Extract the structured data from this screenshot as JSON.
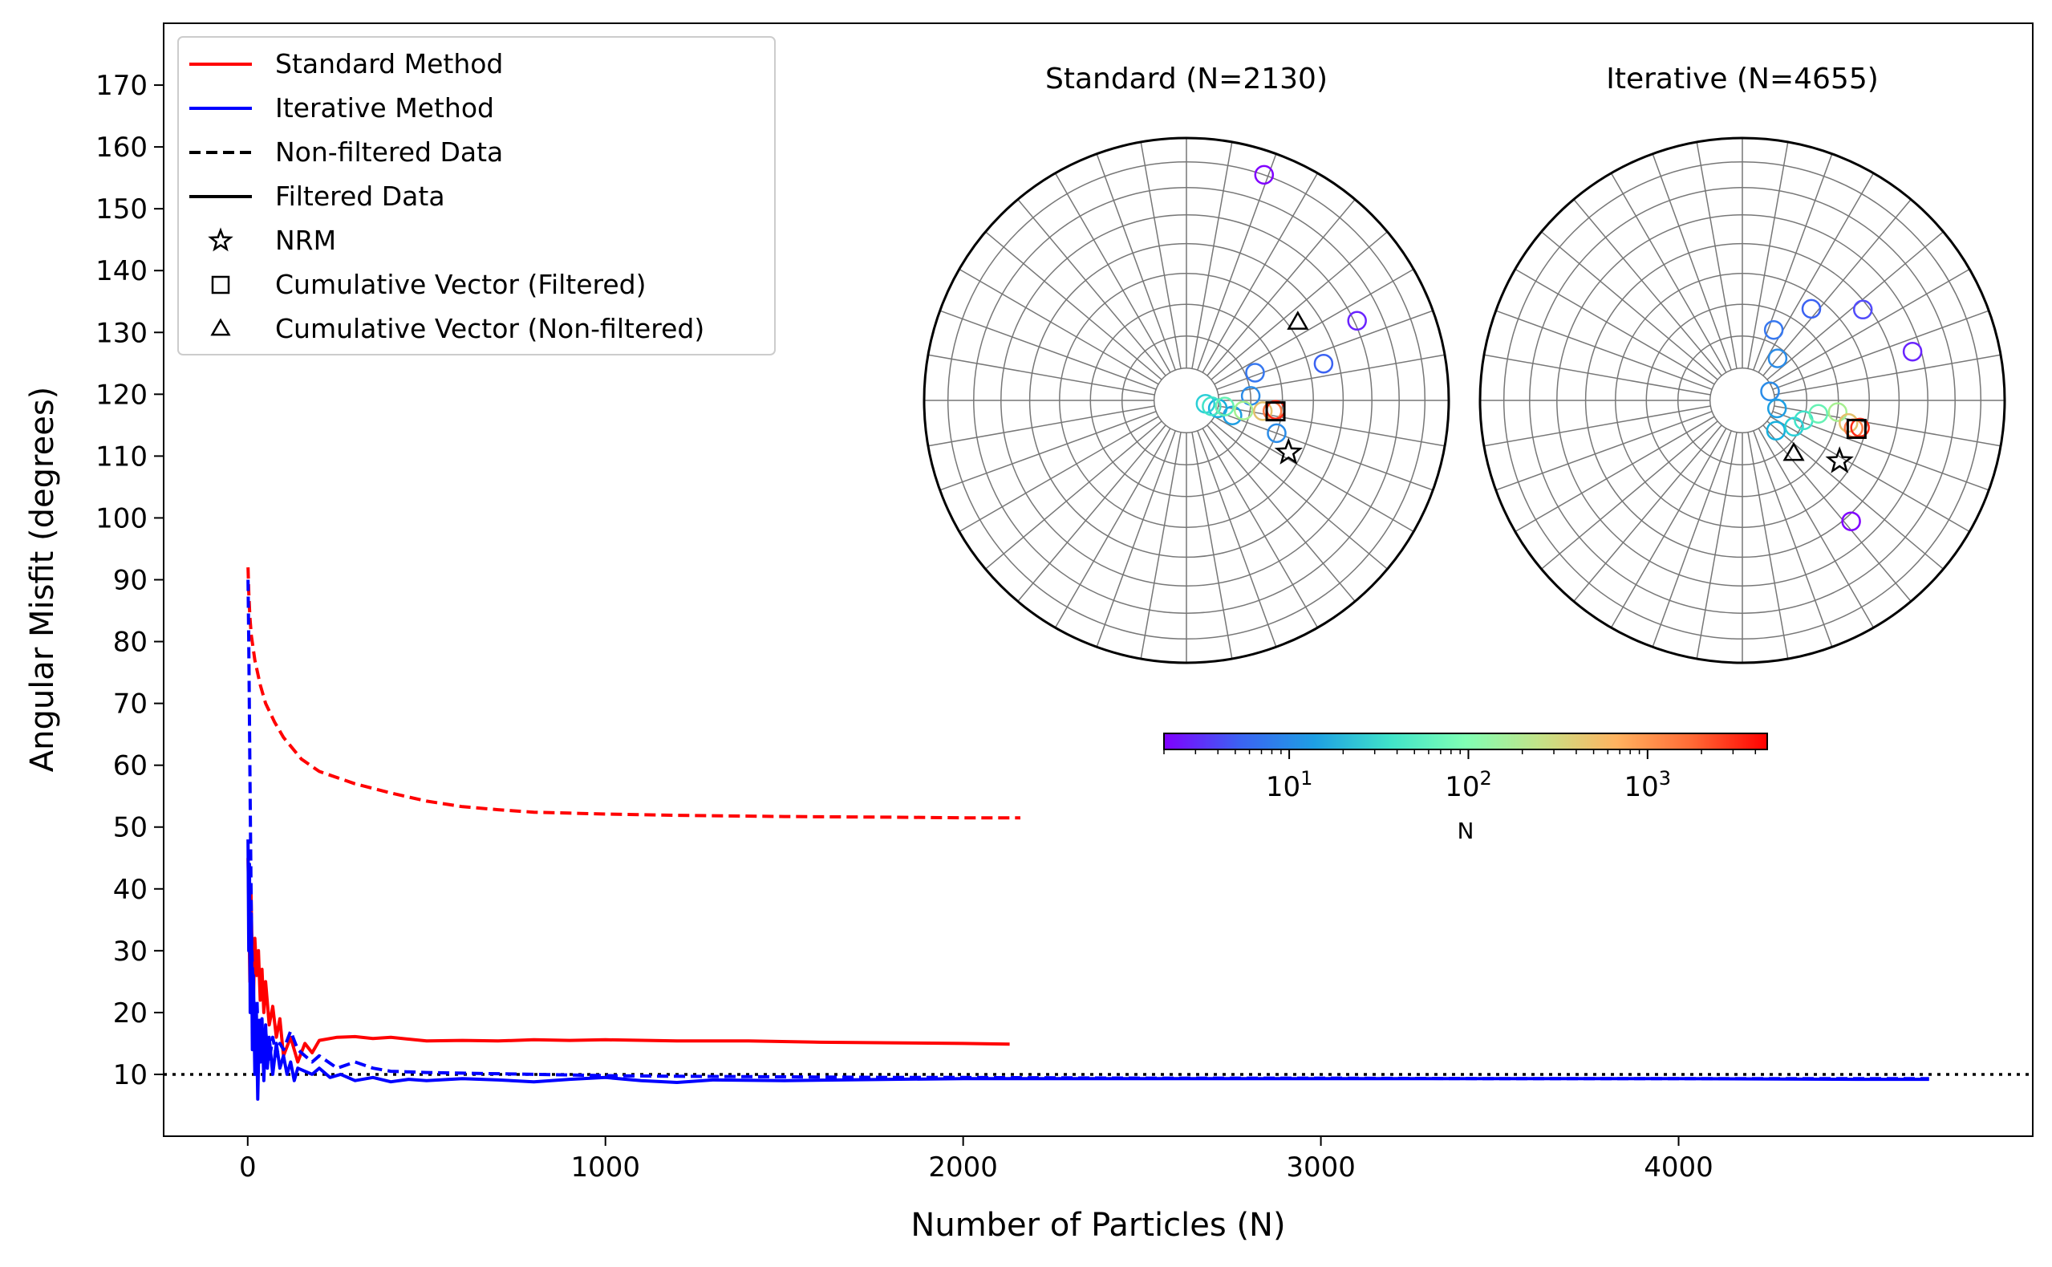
{
  "chart_data": [
    {
      "type": "line",
      "title": "",
      "xlabel": "Number of Particles (N)",
      "ylabel": "Angular Misfit (degrees)",
      "xlim": [
        -235,
        4990
      ],
      "ylim": [
        0,
        180
      ],
      "xticks": [
        0,
        1000,
        2000,
        3000,
        4000
      ],
      "xtick_labels": [
        "0",
        "1000",
        "2000",
        "3000",
        "4000"
      ],
      "yticks": [
        10,
        20,
        30,
        40,
        50,
        60,
        70,
        80,
        90,
        100,
        110,
        120,
        130,
        140,
        150,
        160,
        170
      ],
      "ytick_labels": [
        "10",
        "20",
        "30",
        "40",
        "50",
        "60",
        "70",
        "80",
        "90",
        "100",
        "110",
        "120",
        "130",
        "140",
        "150",
        "160",
        "170"
      ],
      "grid": false,
      "legend_position": "upper-left",
      "legend": [
        {
          "label": "Standard Method",
          "kind": "line",
          "color": "#ff0000",
          "dash": "solid"
        },
        {
          "label": "Iterative Method",
          "kind": "line",
          "color": "#0000ff",
          "dash": "solid"
        },
        {
          "label": "Non-filtered Data",
          "kind": "line",
          "color": "#000000",
          "dash": "dashed"
        },
        {
          "label": "Filtered Data",
          "kind": "line",
          "color": "#000000",
          "dash": "solid"
        },
        {
          "label": "NRM",
          "kind": "star",
          "color": "#000000"
        },
        {
          "label": "Cumulative Vector (Filtered)",
          "kind": "square",
          "color": "#000000"
        },
        {
          "label": "Cumulative Vector (Non-filtered)",
          "kind": "triangle",
          "color": "#000000"
        }
      ],
      "reference_line": {
        "y": 10,
        "style": "dotted",
        "color": "#000000"
      },
      "series": [
        {
          "name": "Standard Method",
          "line": "Non-filtered Data",
          "color": "#ff0000",
          "dash": "dashed",
          "x": [
            1,
            3,
            6,
            10,
            20,
            35,
            50,
            75,
            100,
            150,
            200,
            300,
            400,
            500,
            600,
            700,
            800,
            1000,
            1200,
            1500,
            1800,
            2000,
            2160
          ],
          "y": [
            92,
            88,
            84,
            81,
            77,
            73,
            70,
            67,
            64.5,
            61,
            59,
            57,
            55.5,
            54.2,
            53.3,
            52.8,
            52.4,
            52.1,
            51.9,
            51.7,
            51.6,
            51.5,
            51.5
          ]
        },
        {
          "name": "Standard Method",
          "line": "Filtered Data",
          "color": "#ff0000",
          "dash": "solid",
          "x": [
            1,
            3,
            6,
            9,
            12,
            16,
            20,
            25,
            30,
            35,
            40,
            45,
            50,
            60,
            70,
            80,
            90,
            100,
            120,
            140,
            160,
            180,
            200,
            250,
            300,
            350,
            400,
            500,
            600,
            700,
            800,
            900,
            1000,
            1200,
            1400,
            1600,
            1800,
            2000,
            2130
          ],
          "y": [
            45,
            38,
            25,
            40,
            31,
            22,
            32,
            26,
            30,
            22,
            27,
            20,
            25,
            18,
            21,
            16,
            19,
            13,
            16,
            12,
            15,
            13.5,
            15.5,
            16,
            16.1,
            15.8,
            16,
            15.4,
            15.5,
            15.4,
            15.6,
            15.5,
            15.6,
            15.4,
            15.4,
            15.2,
            15.1,
            15.0,
            14.9
          ]
        },
        {
          "name": "Iterative Method",
          "line": "Non-filtered Data",
          "color": "#0000ff",
          "dash": "dashed",
          "x": [
            1,
            3,
            5,
            7,
            9,
            11,
            14,
            18,
            22,
            26,
            30,
            35,
            40,
            50,
            60,
            70,
            80,
            90,
            100,
            120,
            140,
            160,
            180,
            200,
            250,
            300,
            350,
            400,
            500,
            600,
            800,
            1000,
            1200,
            1500,
            1800,
            2000,
            2500,
            3000,
            3500,
            4000,
            4500,
            4700
          ],
          "y": [
            90,
            80,
            67,
            54,
            42,
            31,
            26,
            20,
            18,
            22,
            14,
            19,
            15,
            17,
            12,
            16,
            13,
            15,
            14,
            17,
            14,
            13,
            12,
            13,
            11,
            12,
            11,
            10.5,
            10.3,
            10.2,
            10.0,
            9.8,
            9.7,
            9.6,
            9.5,
            9.5,
            9.4,
            9.4,
            9.3,
            9.3,
            9.3,
            9.3
          ]
        },
        {
          "name": "Iterative Method",
          "line": "Filtered Data",
          "color": "#0000ff",
          "dash": "solid",
          "x": [
            1,
            3,
            5,
            7,
            10,
            13,
            16,
            20,
            24,
            28,
            32,
            36,
            40,
            45,
            50,
            55,
            60,
            70,
            80,
            90,
            100,
            110,
            120,
            130,
            140,
            160,
            180,
            200,
            230,
            260,
            300,
            350,
            400,
            450,
            500,
            600,
            700,
            800,
            900,
            1000,
            1100,
            1200,
            1300,
            1500,
            1800,
            2000,
            2500,
            3000,
            3500,
            4000,
            4500,
            4700
          ],
          "y": [
            48,
            30,
            44,
            20,
            36,
            14,
            26,
            10,
            21,
            6,
            17,
            12,
            19,
            9,
            18,
            11,
            16,
            10,
            15,
            11,
            13,
            10,
            12,
            9,
            11,
            10.5,
            10,
            11,
            9.5,
            10,
            9,
            9.5,
            8.8,
            9.2,
            9,
            9.3,
            9.1,
            8.8,
            9.2,
            9.5,
            9.0,
            8.7,
            9.1,
            9.0,
            9.2,
            9.3,
            9.3,
            9.3,
            9.3,
            9.3,
            9.2,
            9.2
          ]
        }
      ]
    },
    {
      "type": "scatter",
      "projection": "stereonet",
      "title": "Standard (N=2130)",
      "points": [
        {
          "dec": 19,
          "inc": 10,
          "n": 2,
          "color": "#8000ff"
        },
        {
          "dec": 65,
          "inc": 29,
          "n": 3,
          "color": "#6a24fe"
        },
        {
          "dec": 75,
          "inc": 45,
          "n": 6,
          "color": "#3b62f2"
        },
        {
          "dec": 68,
          "inc": 67,
          "n": 7,
          "color": "#3778f0"
        },
        {
          "dec": 86,
          "inc": 70,
          "n": 9,
          "color": "#2b8ce8"
        },
        {
          "dec": 110,
          "inc": 60,
          "n": 9,
          "color": "#2b8ce8"
        },
        {
          "dec": 108,
          "inc": 75,
          "n": 14,
          "color": "#1e9fe3"
        },
        {
          "dec": 104,
          "inc": 80,
          "n": 14,
          "color": "#17b0de"
        },
        {
          "dec": 100,
          "inc": 84,
          "n": 20,
          "color": "#2bcfd6"
        },
        {
          "dec": 103,
          "inc": 82,
          "n": 30,
          "color": "#40e3c9"
        },
        {
          "dec": 99,
          "inc": 78,
          "n": 50,
          "color": "#66f2b4"
        },
        {
          "dec": 100,
          "inc": 72,
          "n": 120,
          "color": "#a6f091"
        },
        {
          "dec": 98,
          "inc": 66,
          "n": 300,
          "color": "#e3c06c"
        },
        {
          "dec": 97,
          "inc": 63,
          "n": 800,
          "color": "#ff7a45"
        },
        {
          "dec": 96,
          "inc": 62,
          "n": 2130,
          "color": "#ff2a15"
        }
      ],
      "nrm": {
        "dec": 117,
        "inc": 54
      },
      "cumulative_filtered": {
        "dec": 97,
        "inc": 62
      },
      "cumulative_nonfiltered": {
        "dec": 55,
        "inc": 47
      }
    },
    {
      "type": "scatter",
      "projection": "stereonet",
      "title": "Iterative (N=4655)",
      "points": [
        {
          "dec": 138,
          "inc": 38,
          "n": 2,
          "color": "#8000ff"
        },
        {
          "dec": 74,
          "inc": 33,
          "n": 3,
          "color": "#6a24fe"
        },
        {
          "dec": 53,
          "inc": 42,
          "n": 4,
          "color": "#524cfb"
        },
        {
          "dec": 37,
          "inc": 54,
          "n": 6,
          "color": "#3b62f2"
        },
        {
          "dec": 24,
          "inc": 66,
          "n": 8,
          "color": "#3778f0"
        },
        {
          "dec": 40,
          "inc": 73,
          "n": 9,
          "color": "#2b8ce8"
        },
        {
          "dec": 72,
          "inc": 81,
          "n": 10,
          "color": "#2b8ce8"
        },
        {
          "dec": 103,
          "inc": 79,
          "n": 12,
          "color": "#1e9fe3"
        },
        {
          "dec": 132,
          "inc": 76,
          "n": 14,
          "color": "#17b0de"
        },
        {
          "dec": 117,
          "inc": 72,
          "n": 20,
          "color": "#2bcfd6"
        },
        {
          "dec": 108,
          "inc": 70,
          "n": 40,
          "color": "#40e3c9"
        },
        {
          "dec": 100,
          "inc": 66,
          "n": 80,
          "color": "#66f2b4"
        },
        {
          "dec": 97,
          "inc": 60,
          "n": 200,
          "color": "#a6f091"
        },
        {
          "dec": 102,
          "inc": 56,
          "n": 600,
          "color": "#e3c06c"
        },
        {
          "dec": 104,
          "inc": 54,
          "n": 1500,
          "color": "#ff7a45"
        },
        {
          "dec": 103,
          "inc": 52,
          "n": 4655,
          "color": "#ff2a15"
        }
      ],
      "nrm": {
        "dec": 122,
        "inc": 54
      },
      "cumulative_filtered": {
        "dec": 104,
        "inc": 53
      },
      "cumulative_nonfiltered": {
        "dec": 136,
        "inc": 67
      }
    }
  ],
  "colorbar": {
    "label": "N",
    "scale": "log",
    "min": 2,
    "max": 4655,
    "ticks": [
      10,
      100,
      1000
    ],
    "tick_labels": [
      {
        "base": "10",
        "exp": "1"
      },
      {
        "base": "10",
        "exp": "2"
      },
      {
        "base": "10",
        "exp": "3"
      }
    ],
    "colormap": "rainbow",
    "colors": [
      "#8000ff",
      "#3b62f2",
      "#1e9fe3",
      "#40e3c9",
      "#80ffb4",
      "#c5e287",
      "#ffb360",
      "#ff6a35",
      "#ff0000"
    ]
  }
}
